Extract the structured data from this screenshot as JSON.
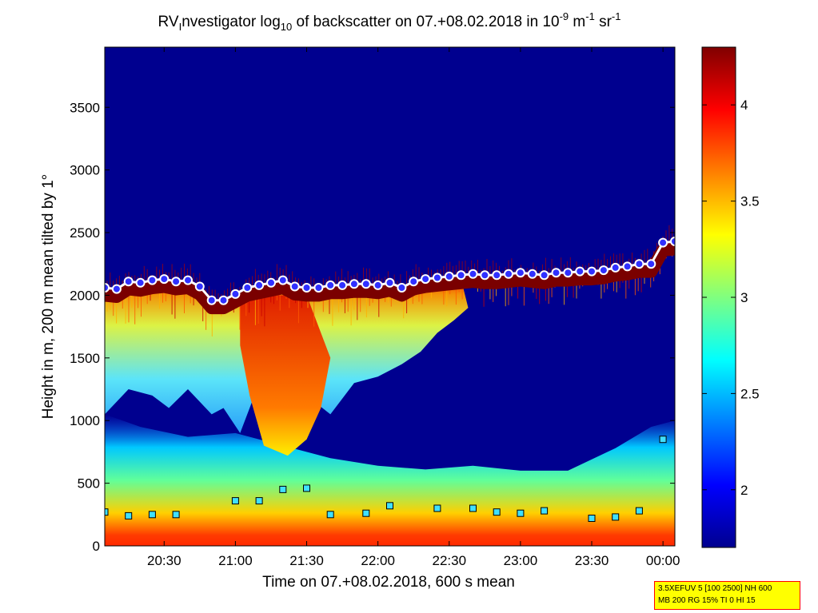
{
  "chart_data": {
    "type": "heatmap",
    "title": {
      "main": "RV",
      "sub1": "I",
      "part2": "nvestigator log",
      "sub2": "10",
      "part3": " of backscatter on 07.+08.02.2018 in 10",
      "sup1": "-9",
      "part4": " m",
      "sup2": "-1",
      "part5": " sr",
      "sup3": "-1"
    },
    "xlabel": "Time on 07.+08.02.2018, 600 s mean",
    "ylabel": "Height in m, 200 m mean tilted by 1°",
    "x_ticks": [
      "20:30",
      "21:00",
      "21:30",
      "22:00",
      "22:30",
      "23:00",
      "23:30",
      "00:00"
    ],
    "x_tick_minutes": [
      1230,
      1260,
      1290,
      1320,
      1350,
      1380,
      1410,
      1440
    ],
    "xlim_minutes": [
      1205,
      1445
    ],
    "y_ticks": [
      "0",
      "500",
      "1000",
      "1500",
      "2000",
      "2500",
      "3000",
      "3500"
    ],
    "y_tick_values": [
      0,
      500,
      1000,
      1500,
      2000,
      2500,
      3000,
      3500
    ],
    "ylim": [
      0,
      3980
    ],
    "colorbar": {
      "ticks": [
        "2",
        "2.5",
        "3",
        "3.5",
        "4"
      ],
      "tick_values": [
        2,
        2.5,
        3,
        3.5,
        4
      ],
      "range": [
        1.7,
        4.3
      ],
      "colormap": "jet"
    },
    "cloud_base": {
      "time_minutes": [
        1205,
        1210,
        1215,
        1220,
        1225,
        1230,
        1235,
        1240,
        1245,
        1250,
        1255,
        1260,
        1265,
        1270,
        1275,
        1280,
        1285,
        1290,
        1295,
        1300,
        1305,
        1310,
        1315,
        1320,
        1325,
        1330,
        1335,
        1340,
        1345,
        1350,
        1355,
        1360,
        1365,
        1370,
        1375,
        1380,
        1385,
        1390,
        1395,
        1400,
        1405,
        1410,
        1415,
        1420,
        1425,
        1430,
        1435,
        1440,
        1445
      ],
      "height_m": [
        2060,
        2050,
        2110,
        2100,
        2120,
        2130,
        2110,
        2120,
        2070,
        1960,
        1960,
        2010,
        2060,
        2080,
        2100,
        2120,
        2070,
        2060,
        2060,
        2080,
        2080,
        2090,
        2090,
        2080,
        2100,
        2060,
        2110,
        2130,
        2140,
        2150,
        2160,
        2170,
        2160,
        2160,
        2170,
        2180,
        2170,
        2160,
        2180,
        2180,
        2190,
        2190,
        2200,
        2220,
        2230,
        2250,
        2250,
        2420,
        2430
      ]
    },
    "boundary_layer_top": {
      "time_minutes": [
        1205,
        1215,
        1225,
        1235,
        1260,
        1270,
        1280,
        1290,
        1300,
        1315,
        1325,
        1345,
        1360,
        1370,
        1380,
        1390,
        1410,
        1420,
        1430,
        1440
      ],
      "height_m": [
        270,
        240,
        250,
        250,
        360,
        360,
        450,
        460,
        250,
        260,
        320,
        300,
        300,
        270,
        260,
        280,
        220,
        230,
        280,
        850
      ]
    }
  },
  "info_box": {
    "line1": "3.5XEFUV 5 [100 2500] NH 600",
    "line2": "MB 200 RG 15% TI 0 HI 15"
  }
}
